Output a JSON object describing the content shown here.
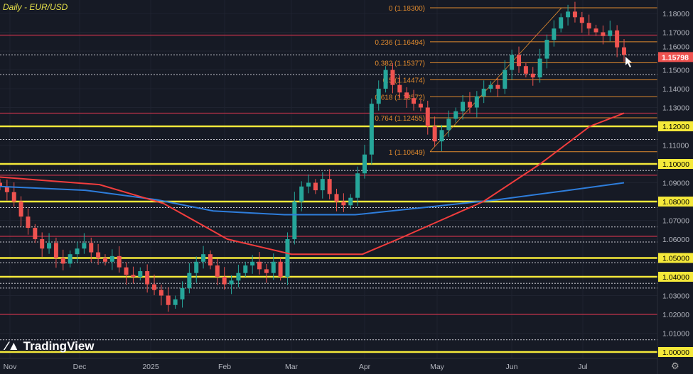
{
  "chart_data": {
    "type": "candlestick",
    "title": "Daily - EUR/USD",
    "ylim": [
      1.0,
      1.18
    ],
    "y_ticks": [
      1.18,
      1.17,
      1.16,
      1.15,
      1.14,
      1.13,
      1.12,
      1.11,
      1.1,
      1.09,
      1.08,
      1.07,
      1.06,
      1.05,
      1.04,
      1.03,
      1.02,
      1.01,
      1.0
    ],
    "highlighted_levels": [
      1.12,
      1.1,
      1.08,
      1.05,
      1.04,
      1.0
    ],
    "resistance_lines_red": [
      1.1685,
      1.127,
      1.094,
      1.0615,
      1.02
    ],
    "dotted_lines": [
      1.158,
      1.1475,
      1.113,
      1.0965,
      1.0768,
      1.0665,
      1.0585,
      1.0475,
      1.0365,
      1.034,
      1.0065
    ],
    "x_labels": [
      "Nov",
      "Dec",
      "2025",
      "Feb",
      "Mar",
      "Apr",
      "May",
      "Jun",
      "Jul"
    ],
    "closes": [
      1.088,
      1.085,
      1.08,
      1.072,
      1.066,
      1.06,
      1.055,
      1.058,
      1.05,
      1.047,
      1.052,
      1.055,
      1.058,
      1.053,
      1.05,
      1.048,
      1.051,
      1.045,
      1.041,
      1.04,
      1.043,
      1.036,
      1.033,
      1.03,
      1.025,
      1.028,
      1.034,
      1.042,
      1.048,
      1.052,
      1.046,
      1.04,
      1.036,
      1.038,
      1.042,
      1.046,
      1.048,
      1.044,
      1.042,
      1.048,
      1.04,
      1.06,
      1.08,
      1.088,
      1.09,
      1.086,
      1.092,
      1.084,
      1.08,
      1.078,
      1.082,
      1.095,
      1.105,
      1.132,
      1.14,
      1.15,
      1.142,
      1.138,
      1.135,
      1.132,
      1.13,
      1.12,
      1.112,
      1.118,
      1.124,
      1.128,
      1.133,
      1.13,
      1.136,
      1.14,
      1.142,
      1.14,
      1.15,
      1.158,
      1.152,
      1.148,
      1.146,
      1.156,
      1.166,
      1.172,
      1.178,
      1.181,
      1.178,
      1.175,
      1.172,
      1.17,
      1.168,
      1.171,
      1.162,
      1.158
    ],
    "ma_red": [
      [
        0,
        1.093
      ],
      [
        140,
        1.089
      ],
      [
        230,
        1.079
      ],
      [
        320,
        1.06
      ],
      [
        410,
        1.052
      ],
      [
        510,
        1.052
      ],
      [
        560,
        1.06
      ],
      [
        680,
        1.08
      ],
      [
        760,
        1.1
      ],
      [
        830,
        1.12
      ],
      [
        878,
        1.127
      ]
    ],
    "ma_blue": [
      [
        0,
        1.088
      ],
      [
        120,
        1.086
      ],
      [
        220,
        1.081
      ],
      [
        300,
        1.075
      ],
      [
        400,
        1.073
      ],
      [
        500,
        1.073
      ],
      [
        600,
        1.077
      ],
      [
        700,
        1.081
      ],
      [
        800,
        1.086
      ],
      [
        878,
        1.09
      ]
    ],
    "fibonacci": [
      {
        "level": "0",
        "price": 1.183,
        "label": "0 (1.18300)"
      },
      {
        "level": "0.236",
        "price": 1.16494,
        "label": "0.236 (1.16494)"
      },
      {
        "level": "0.382",
        "price": 1.15377,
        "label": "0.382 (1.15377)"
      },
      {
        "level": "0.5",
        "price": 1.14474,
        "label": "0.5 (1.14474)"
      },
      {
        "level": "0.618",
        "price": 1.13572,
        "label": "0.618 (1.13572)"
      },
      {
        "level": "0.764",
        "price": 1.12455,
        "label": "0.764 (1.12455)"
      },
      {
        "level": "1",
        "price": 1.10649,
        "label": "1 (1.10649)"
      }
    ],
    "current_price": 1.15798,
    "current_price_label": "1.15798",
    "colors": {
      "up": "#26a69a",
      "down": "#ef5350",
      "highlight": "#f5e93a",
      "fib": "#e08a2e",
      "ma_red": "#f23d3d",
      "ma_blue": "#2e7ddb"
    }
  },
  "brand": "TradingView"
}
